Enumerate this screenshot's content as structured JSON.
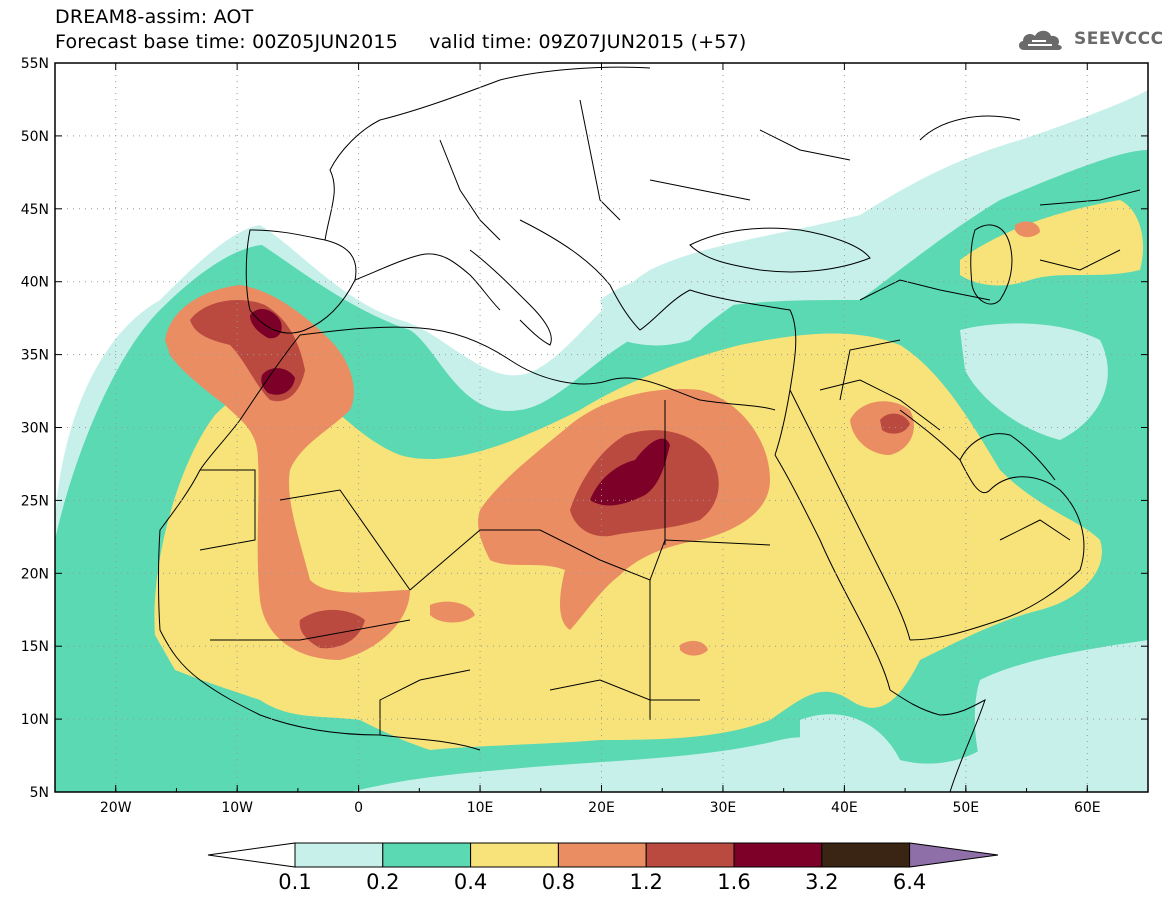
{
  "header": {
    "title_line_1": "DREAM8-assim: AOT",
    "title_line_2": "Forecast base time: 00Z05JUN2015     valid time: 09Z07JUN2015 (+57)",
    "logo_text": "SEEVCCC"
  },
  "map": {
    "lat_labels": [
      "55N",
      "50N",
      "45N",
      "40N",
      "35N",
      "30N",
      "25N",
      "20N",
      "15N",
      "10N",
      "5N"
    ],
    "lon_labels": [
      "20W",
      "10W",
      "0",
      "10E",
      "20E",
      "30E",
      "40E",
      "50E",
      "60E"
    ],
    "extent": {
      "lon": [
        -25,
        65
      ],
      "lat": [
        5,
        55
      ]
    },
    "grid": "dotted"
  },
  "legend": {
    "labels": [
      "0.1",
      "0.2",
      "0.4",
      "0.8",
      "1.2",
      "1.6",
      "3.2",
      "6.4"
    ],
    "colors": [
      "#ffffff",
      "#c7f0ea",
      "#5ad9b2",
      "#f7e37a",
      "#ea8d63",
      "#ba4a3f",
      "#7c0028",
      "#3a2414",
      "#8e6fa8"
    ]
  }
}
